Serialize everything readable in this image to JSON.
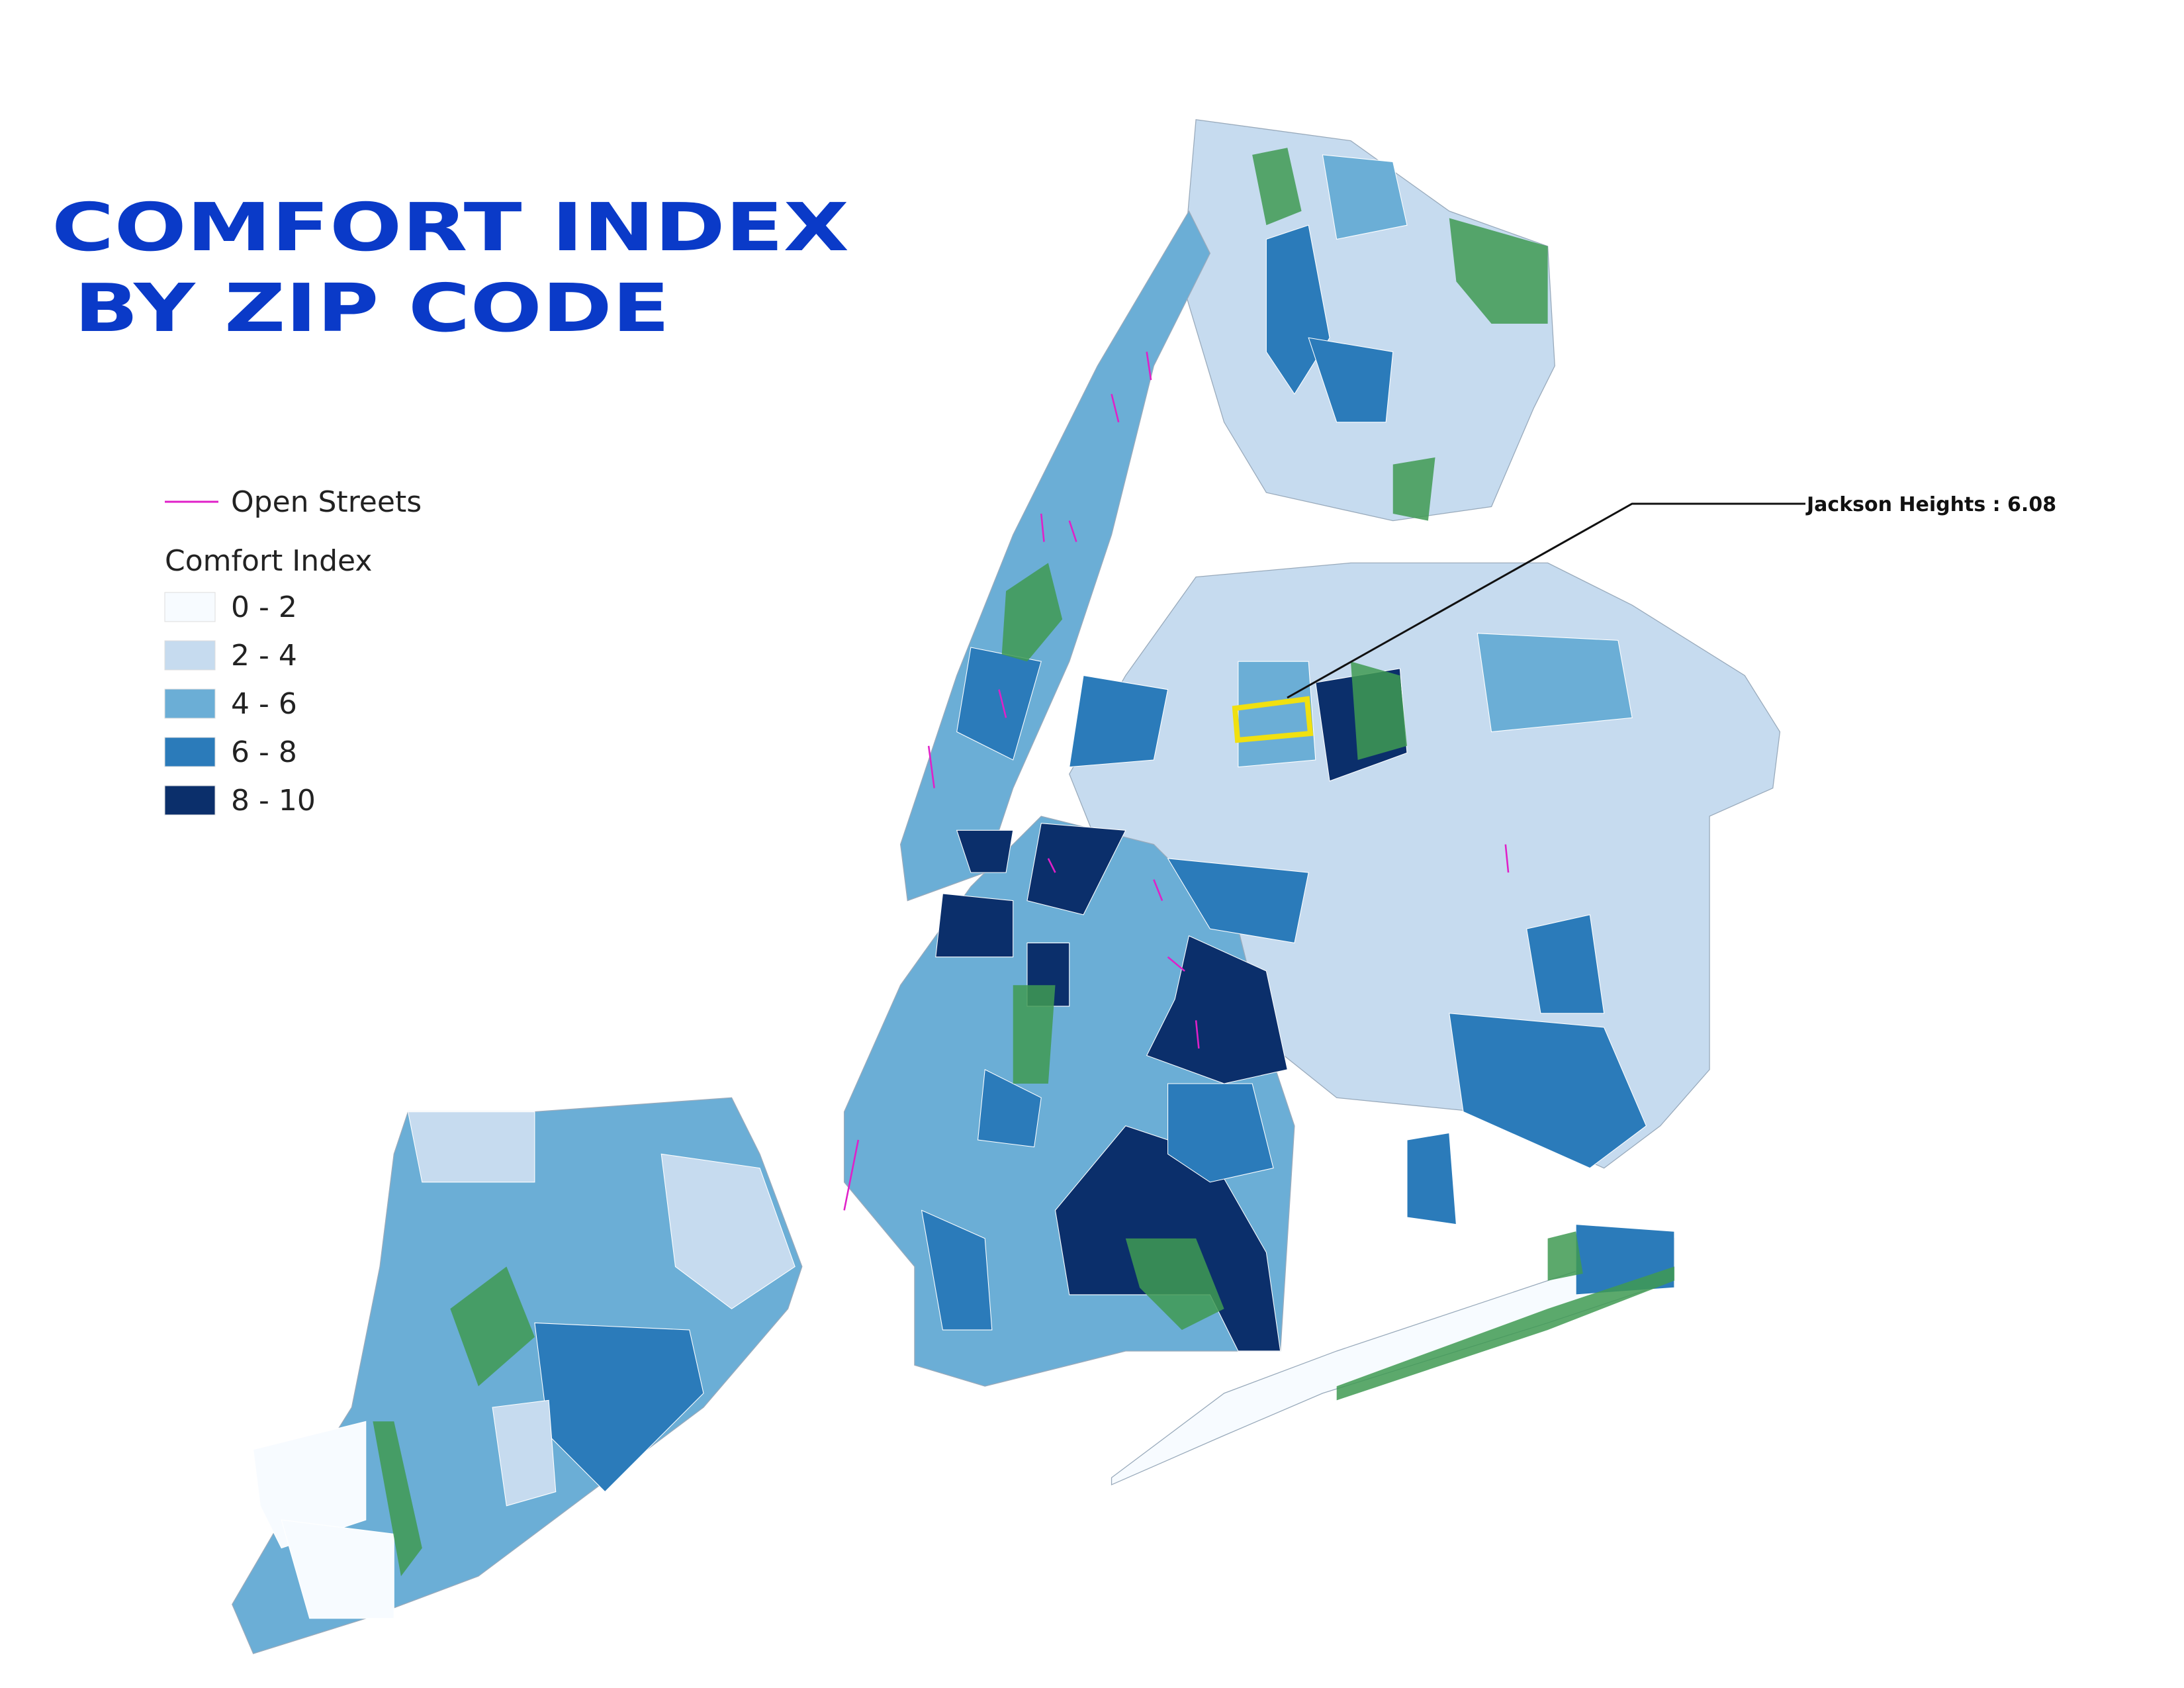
{
  "title": [
    "COMFORT INDEX",
    "BY ZIP CODE"
  ],
  "annotation": "Jackson Heights : 6.08",
  "legend": {
    "open_streets": {
      "label": "Open Streets",
      "color": "#e020c8"
    },
    "title": "Comfort Index",
    "classes": [
      {
        "label": "0 - 2",
        "color": "#f7fbff"
      },
      {
        "label": "2 - 4",
        "color": "#c6dbef"
      },
      {
        "label": "4 - 6",
        "color": "#6baed6"
      },
      {
        "label": "6 - 8",
        "color": "#2b7bba"
      },
      {
        "label": "8 - 10",
        "color": "#0b2f6b"
      }
    ]
  }
}
